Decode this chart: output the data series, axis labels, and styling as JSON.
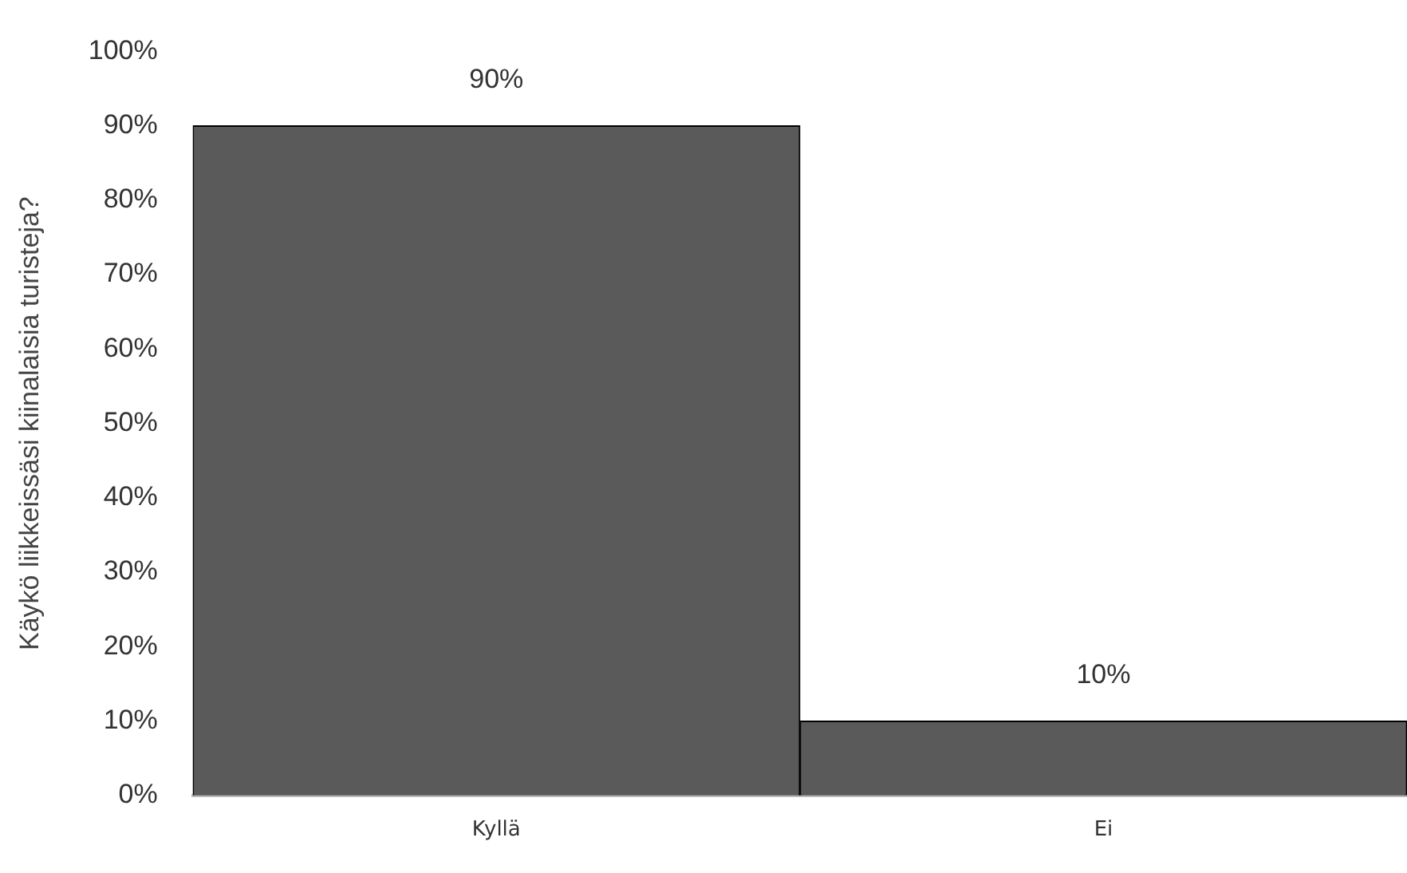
{
  "chart_data": {
    "type": "bar",
    "ylabel": "Käykö liikkeissäsi kiinalaisia turisteja?",
    "categories": [
      "Kyllä",
      "Ei"
    ],
    "values": [
      90,
      10
    ],
    "value_labels": [
      "90%",
      "10%"
    ],
    "color": "#5a5a5a",
    "ylim": [
      0,
      100
    ],
    "yticks": [
      {
        "value": 0,
        "label": "0%"
      },
      {
        "value": 10,
        "label": "10%"
      },
      {
        "value": 20,
        "label": "20%"
      },
      {
        "value": 30,
        "label": "30%"
      },
      {
        "value": 40,
        "label": "40%"
      },
      {
        "value": 50,
        "label": "50%"
      },
      {
        "value": 60,
        "label": "60%"
      },
      {
        "value": 70,
        "label": "70%"
      },
      {
        "value": 80,
        "label": "80%"
      },
      {
        "value": 90,
        "label": "90%"
      },
      {
        "value": 100,
        "label": "100%"
      }
    ],
    "grid": false,
    "legend": false
  }
}
